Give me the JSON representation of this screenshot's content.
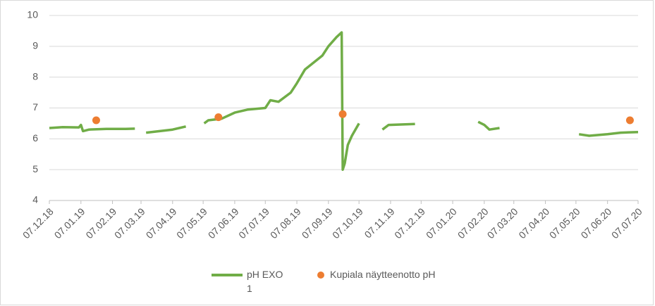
{
  "chart_data": {
    "type": "line",
    "x": [
      "07.12.18",
      "20.12.18",
      "05.01.19",
      "07.01.19",
      "09.01.19",
      "15.01.19",
      "01.02.19",
      "20.02.19",
      "01.03.19",
      null,
      "12.03.19",
      "07.04.19",
      "20.04.19",
      null,
      "08.05.19",
      "12.05.19",
      "25.05.19",
      "07.06.19",
      "20.06.19",
      "07.07.19",
      "12.07.19",
      "20.07.19",
      "01.08.19",
      "07.08.19",
      "15.08.19",
      "01.09.19",
      "07.09.19",
      "15.09.19",
      "20.09.19",
      "21.09.19",
      "23.09.19",
      "26.09.19",
      "30.09.19",
      "07.10.19",
      null,
      "30.10.19",
      "05.11.19",
      "01.12.19",
      null,
      "01.02.20",
      "07.02.20",
      "12.02.20",
      "22.02.20",
      null,
      "10.05.20",
      "20.05.20",
      "07.06.20",
      "20.06.20",
      "07.07.20"
    ],
    "series": [
      {
        "name": "pH EXO 1",
        "type": "line",
        "color": "#70ad47",
        "values": [
          6.35,
          6.38,
          6.37,
          6.45,
          6.25,
          6.3,
          6.32,
          6.32,
          6.33,
          null,
          6.2,
          6.3,
          6.4,
          null,
          6.5,
          6.6,
          6.65,
          6.85,
          6.95,
          7.0,
          7.25,
          7.2,
          7.5,
          7.8,
          8.25,
          8.7,
          9.0,
          9.3,
          9.45,
          5.0,
          5.2,
          5.8,
          6.1,
          6.5,
          null,
          6.3,
          6.45,
          6.48,
          null,
          6.55,
          6.45,
          6.3,
          6.35,
          null,
          6.15,
          6.1,
          6.15,
          6.2,
          6.22
        ]
      },
      {
        "name": "Kupiala näytteenotto pH",
        "type": "scatter",
        "color": "#ed7d31",
        "x": [
          "22.01.19",
          "22.05.19",
          "21.09.19",
          "29.06.20"
        ],
        "values": [
          6.6,
          6.7,
          6.8,
          6.6
        ]
      }
    ],
    "xlim": [
      "07.12.18",
      "07.07.20"
    ],
    "xticks": [
      "07.12.18",
      "07.01.19",
      "07.02.19",
      "07.03.19",
      "07.04.19",
      "07.05.19",
      "07.06.19",
      "07.07.19",
      "07.08.19",
      "07.09.19",
      "07.10.19",
      "07.11.19",
      "07.12.19",
      "07.01.20",
      "07.02.20",
      "07.03.20",
      "07.04.20",
      "07.05.20",
      "07.06.20",
      "07.07.20"
    ],
    "ylim": [
      4,
      10
    ],
    "yticks": [
      4,
      5,
      6,
      7,
      8,
      9,
      10
    ],
    "grid": true,
    "legend": "bottom"
  }
}
